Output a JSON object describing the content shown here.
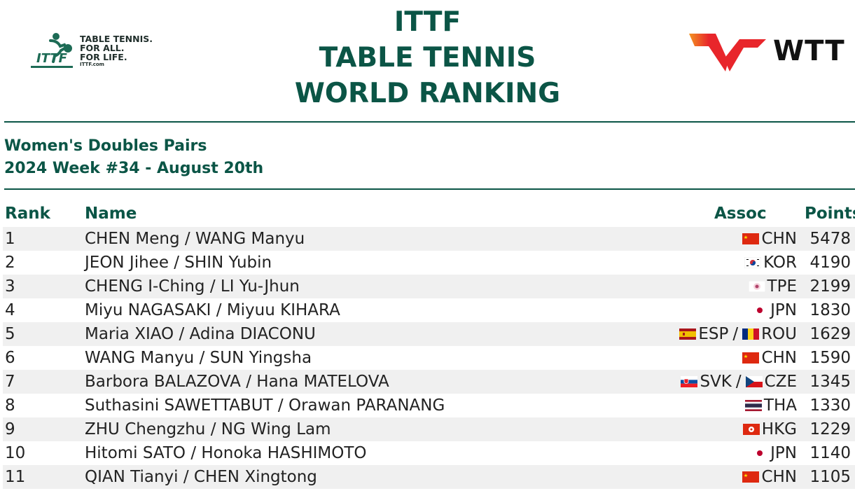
{
  "header": {
    "title_lines": [
      "ITTF",
      "TABLE TENNIS",
      "WORLD RANKING"
    ],
    "ittf_logo": {
      "mark": "ITTF",
      "tagline": [
        "TABLE TENNIS.",
        "FOR ALL.",
        "FOR LIFE."
      ],
      "url": "ITTF.com"
    },
    "wtt_logo": {
      "text": "WTT"
    }
  },
  "subtitle": {
    "category": "Women's Doubles Pairs",
    "week": "2024 Week #34 - August 20th"
  },
  "columns": {
    "rank": "Rank",
    "name": "Name",
    "assoc": "Assoc",
    "points": "Points"
  },
  "colors": {
    "brand_green": "#0b5546",
    "row_shade": "#f0f0f0",
    "wtt_red": "#e8262b",
    "wtt_orange": "#f39321"
  },
  "rows": [
    {
      "rank": "1",
      "name": "CHEN Meng / WANG Manyu",
      "assoc": [
        {
          "code": "CHN",
          "flag": "flag-china"
        }
      ],
      "points": "5478"
    },
    {
      "rank": "2",
      "name": "JEON Jihee / SHIN Yubin",
      "assoc": [
        {
          "code": "KOR",
          "flag": "flag-korea"
        }
      ],
      "points": "4190"
    },
    {
      "rank": "3",
      "name": "CHENG I-Ching / LI Yu-Jhun",
      "assoc": [
        {
          "code": "TPE",
          "flag": "flag-chinese-taipei"
        }
      ],
      "points": "2199"
    },
    {
      "rank": "4",
      "name": "Miyu NAGASAKI / Miyuu KIHARA",
      "assoc": [
        {
          "code": "JPN",
          "flag": "flag-japan"
        }
      ],
      "points": "1830"
    },
    {
      "rank": "5",
      "name": "Maria XIAO / Adina DIACONU",
      "assoc": [
        {
          "code": "ESP",
          "flag": "flag-spain"
        },
        {
          "code": "ROU",
          "flag": "flag-romania"
        }
      ],
      "points": "1629"
    },
    {
      "rank": "6",
      "name": "WANG Manyu / SUN Yingsha",
      "assoc": [
        {
          "code": "CHN",
          "flag": "flag-china"
        }
      ],
      "points": "1590"
    },
    {
      "rank": "7",
      "name": "Barbora BALAZOVA / Hana MATELOVA",
      "assoc": [
        {
          "code": "SVK",
          "flag": "flag-slovakia"
        },
        {
          "code": "CZE",
          "flag": "flag-czechia"
        }
      ],
      "points": "1345"
    },
    {
      "rank": "8",
      "name": "Suthasini SAWETTABUT / Orawan PARANANG",
      "assoc": [
        {
          "code": "THA",
          "flag": "flag-thailand"
        }
      ],
      "points": "1330"
    },
    {
      "rank": "9",
      "name": "ZHU Chengzhu / NG Wing Lam",
      "assoc": [
        {
          "code": "HKG",
          "flag": "flag-hong-kong"
        }
      ],
      "points": "1229"
    },
    {
      "rank": "10",
      "name": "Hitomi SATO / Honoka HASHIMOTO",
      "assoc": [
        {
          "code": "JPN",
          "flag": "flag-japan"
        }
      ],
      "points": "1140"
    },
    {
      "rank": "11",
      "name": "QIAN Tianyi / CHEN Xingtong",
      "assoc": [
        {
          "code": "CHN",
          "flag": "flag-china"
        }
      ],
      "points": "1105"
    }
  ]
}
